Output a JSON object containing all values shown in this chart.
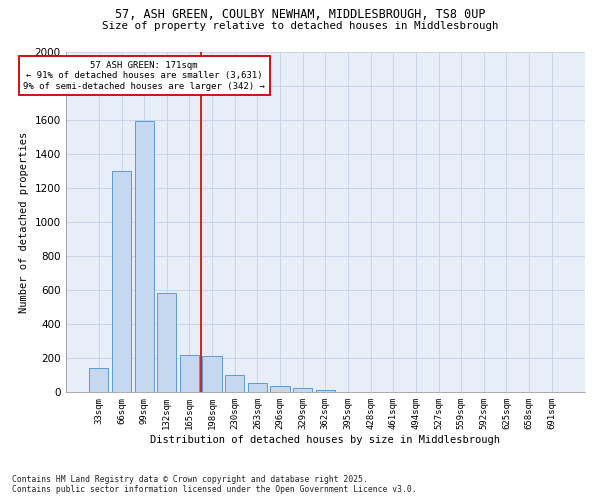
{
  "title_line1": "57, ASH GREEN, COULBY NEWHAM, MIDDLESBROUGH, TS8 0UP",
  "title_line2": "Size of property relative to detached houses in Middlesbrough",
  "xlabel": "Distribution of detached houses by size in Middlesbrough",
  "ylabel": "Number of detached properties",
  "categories": [
    "33sqm",
    "66sqm",
    "99sqm",
    "132sqm",
    "165sqm",
    "198sqm",
    "230sqm",
    "263sqm",
    "296sqm",
    "329sqm",
    "362sqm",
    "395sqm",
    "428sqm",
    "461sqm",
    "494sqm",
    "527sqm",
    "559sqm",
    "592sqm",
    "625sqm",
    "658sqm",
    "691sqm"
  ],
  "values": [
    140,
    1300,
    1590,
    580,
    220,
    215,
    100,
    55,
    40,
    25,
    15,
    0,
    0,
    0,
    0,
    0,
    0,
    0,
    0,
    0,
    0
  ],
  "bar_color": "#c5d8f0",
  "bar_edge_color": "#5b9bd5",
  "annotation_text_line1": "57 ASH GREEN: 171sqm",
  "annotation_text_line2": "← 91% of detached houses are smaller (3,631)",
  "annotation_text_line3": "9% of semi-detached houses are larger (342) →",
  "annotation_box_color": "#ffffff",
  "annotation_box_edge": "#cc0000",
  "red_line_color": "#cc0000",
  "grid_color": "#c8d4e8",
  "background_color": "#e8eef8",
  "ylim": [
    0,
    2000
  ],
  "yticks": [
    0,
    200,
    400,
    600,
    800,
    1000,
    1200,
    1400,
    1600,
    1800,
    2000
  ],
  "red_line_index": 4.5,
  "footer_line1": "Contains HM Land Registry data © Crown copyright and database right 2025.",
  "footer_line2": "Contains public sector information licensed under the Open Government Licence v3.0."
}
